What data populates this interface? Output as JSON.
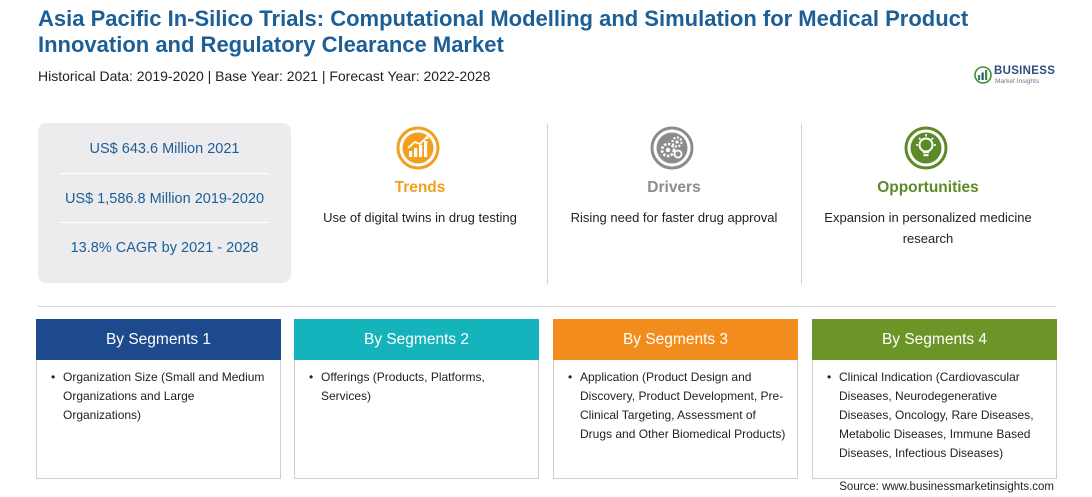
{
  "header": {
    "title": "Asia Pacific In-Silico Trials: Computational Modelling and Simulation for Medical Product Innovation and Regulatory Clearance Market",
    "subtitle": "Historical Data: 2019-2020 | Base Year: 2021 | Forecast Year: 2022-2028"
  },
  "logo": {
    "name": "BUSINESS",
    "tagline": "Market Insights"
  },
  "stats": [
    "US$ 643.6 Million 2021",
    "US$ 1,586.8 Million 2019-2020",
    "13.8% CAGR by 2021 - 2028"
  ],
  "factors": [
    {
      "heading": "Trends",
      "text": "Use of digital twins in drug testing",
      "color": "#f0a01e",
      "icon": "growth-chart-icon"
    },
    {
      "heading": "Drivers",
      "text": "Rising need for faster drug approval",
      "color": "#8c8c8c",
      "icon": "gears-icon"
    },
    {
      "heading": "Opportunities",
      "text": "Expansion in personalized medicine research",
      "color": "#5d8a28",
      "icon": "lightbulb-icon"
    }
  ],
  "segments": [
    {
      "heading": "By Segments 1",
      "bullet": "•",
      "text": "Organization Size (Small and Medium Organizations and Large Organizations)",
      "color": "#1d4a8c"
    },
    {
      "heading": "By Segments 2",
      "bullet": "•",
      "text": "Offerings (Products, Platforms, Services)",
      "color": "#15b3bc"
    },
    {
      "heading": "By Segments 3",
      "bullet": "•",
      "text": "Application (Product Design and Discovery, Product Development, Pre-Clinical Targeting, Assessment of Drugs and Other Biomedical Products)",
      "color": "#f28c1d"
    },
    {
      "heading": "By Segments 4",
      "bullet": "•",
      "text": "Clinical Indication (Cardiovascular Diseases, Neurodegenerative Diseases, Oncology, Rare Diseases, Metabolic Diseases, Immune Based Diseases, Infectious Diseases)",
      "color": "#6c9527"
    }
  ],
  "source": "Source: www.businessmarketinsights.com"
}
